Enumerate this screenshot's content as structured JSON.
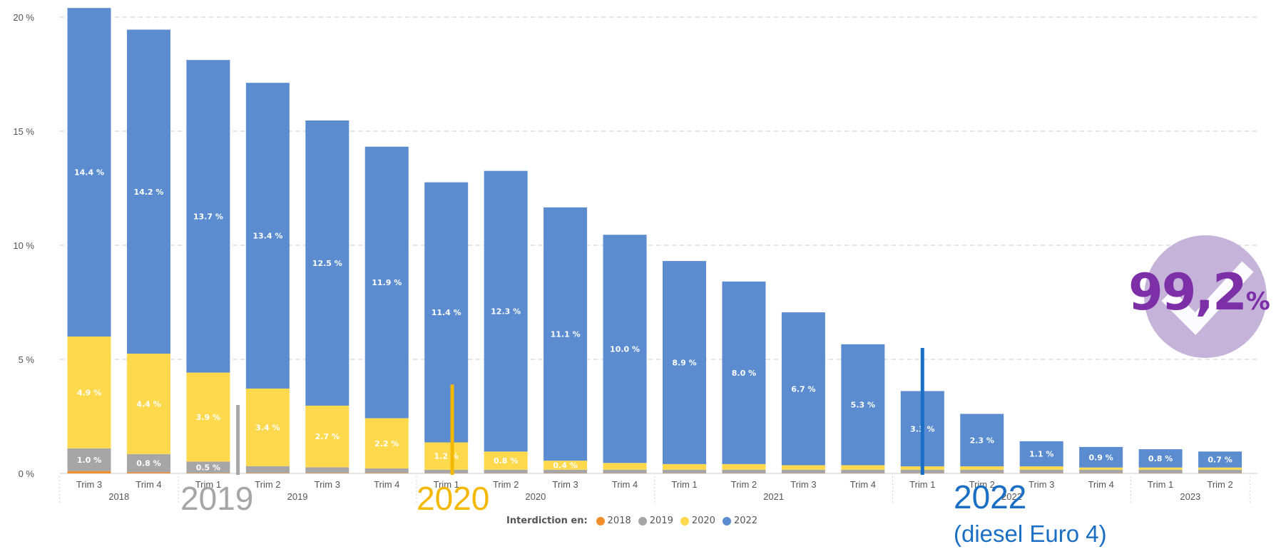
{
  "chart_data": {
    "type": "bar",
    "stacked": true,
    "y_tick_labels": [
      "0 %",
      "5 %",
      "10 %",
      "15 %",
      "20 %"
    ],
    "ylim": [
      0,
      20
    ],
    "grid": true,
    "categories": [
      "Trim 3",
      "Trim 4",
      "Trim 1",
      "Trim 2",
      "Trim 3",
      "Trim 4",
      "Trim 1",
      "Trim 2",
      "Trim 3",
      "Trim 4",
      "Trim 1",
      "Trim 2",
      "Trim 3",
      "Trim 4",
      "Trim 1",
      "Trim 2",
      "Trim 3",
      "Trim 4",
      "Trim 1",
      "Trim 2"
    ],
    "year_groups": [
      {
        "label": "2018",
        "start": 0,
        "end": 1
      },
      {
        "label": "2019",
        "start": 2,
        "end": 5
      },
      {
        "label": "2020",
        "start": 6,
        "end": 9
      },
      {
        "label": "2021",
        "start": 10,
        "end": 13
      },
      {
        "label": "2022",
        "start": 14,
        "end": 17
      },
      {
        "label": "2023",
        "start": 18,
        "end": 19
      }
    ],
    "series": [
      {
        "name": "2018",
        "color": "#f28e2b",
        "values": [
          0.1,
          0.05,
          0.02,
          0.02,
          0.02,
          0.02,
          0.01,
          0.01,
          0.01,
          0.01,
          0.01,
          0.01,
          0.01,
          0.01,
          0.01,
          0.01,
          0.01,
          0.01,
          0.01,
          0.01
        ],
        "labels": [
          "",
          "",
          "",
          "",
          "",
          "",
          "",
          "",
          "",
          "",
          "",
          "",
          "",
          "",
          "",
          "",
          "",
          "",
          "",
          ""
        ]
      },
      {
        "name": "2019",
        "color": "#a6a6a6",
        "values": [
          1.0,
          0.8,
          0.5,
          0.3,
          0.25,
          0.2,
          0.15,
          0.15,
          0.15,
          0.15,
          0.15,
          0.15,
          0.15,
          0.15,
          0.15,
          0.15,
          0.15,
          0.15,
          0.15,
          0.15
        ],
        "labels": [
          "1.0 %",
          "0.8 %",
          "0.5 %",
          "",
          "",
          "",
          "",
          "",
          "",
          "",
          "",
          "",
          "",
          "",
          "",
          "",
          "",
          "",
          "",
          ""
        ]
      },
      {
        "name": "2020",
        "color": "#ffd94d",
        "values": [
          4.9,
          4.4,
          3.9,
          3.4,
          2.7,
          2.2,
          1.2,
          0.8,
          0.4,
          0.3,
          0.25,
          0.25,
          0.2,
          0.2,
          0.15,
          0.15,
          0.15,
          0.1,
          0.1,
          0.1
        ],
        "labels": [
          "4.9 %",
          "4.4 %",
          "3.9 %",
          "3.4 %",
          "2.7 %",
          "2.2 %",
          "1.2 %",
          "0.8 %",
          "0.4 %",
          "",
          "",
          "",
          "",
          "",
          "",
          "",
          "",
          "",
          "",
          ""
        ]
      },
      {
        "name": "2022",
        "color": "#5b8ccf",
        "values": [
          14.4,
          14.2,
          13.7,
          13.4,
          12.5,
          11.9,
          11.4,
          12.3,
          11.1,
          10.0,
          8.9,
          8.0,
          6.7,
          5.3,
          3.3,
          2.3,
          1.1,
          0.9,
          0.8,
          0.7
        ],
        "labels": [
          "14.4 %",
          "14.2 %",
          "13.7 %",
          "13.4 %",
          "12.5 %",
          "11.9 %",
          "11.4 %",
          "12.3 %",
          "11.1 %",
          "10.0 %",
          "8.9 %",
          "8.0 %",
          "6.7 %",
          "5.3 %",
          "3.3 %",
          "2.3 %",
          "1.1 %",
          "0.9 %",
          "0.8 %",
          "0.7 %"
        ]
      }
    ],
    "markers": [
      {
        "label": "2019",
        "color": "#a6a6a6",
        "x_index": 2.5,
        "y_top": 3.0
      },
      {
        "label": "2020",
        "color": "#f5b800",
        "x_index": 6.1,
        "y_top": 3.9
      },
      {
        "label": "2022",
        "color": "#1a6fc4",
        "x_index": 14.0,
        "y_top": 5.5
      }
    ]
  },
  "legend": {
    "title": "Interdiction en:",
    "items": [
      {
        "label": "2018",
        "color": "#f28e2b"
      },
      {
        "label": "2019",
        "color": "#a6a6a6"
      },
      {
        "label": "2020",
        "color": "#ffd94d"
      },
      {
        "label": "2022",
        "color": "#5b8ccf"
      }
    ]
  },
  "annotations": {
    "a2019": "2019",
    "a2020": "2020",
    "a2022": "2022",
    "a2022_sub": "(diesel Euro 4)",
    "a2019_color": "#a6a6a6",
    "a2020_color": "#f5b800",
    "a2022_color": "#1a6fc4"
  },
  "badge": {
    "value": "99,2",
    "unit": "%",
    "circle_color": "#c5b3d9",
    "text_color": "#7d2fa8"
  }
}
